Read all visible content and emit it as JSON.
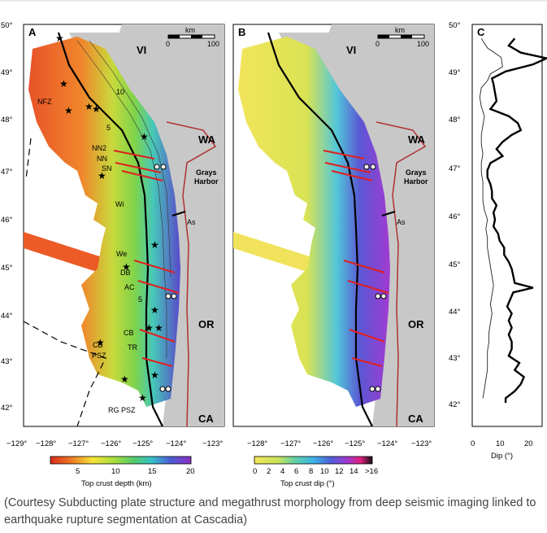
{
  "figure": {
    "top_rule": true,
    "panels": {
      "a": {
        "letter": "A",
        "regions": {
          "vi": "VI",
          "wa": "WA",
          "or": "OR",
          "ca": "CA"
        },
        "scale_bar": {
          "unit": "km",
          "left": "0",
          "right": "100"
        },
        "contour_labels": [
          "10",
          "5",
          "5"
        ],
        "sites": {
          "nfz": "NFZ",
          "nn2": "NN2",
          "nn": "NN",
          "sn": "SN",
          "wi": "Wi",
          "as": "As",
          "we": "We",
          "db": "DB",
          "ac": "AC",
          "cb1": "CB",
          "tr": "TR",
          "cbpsz_1": "CB",
          "cbpsz_2": "PSZ",
          "rgpsz": "RG PSZ"
        },
        "grays_harbor": {
          "line1": "Grays",
          "line2": "Harbor"
        },
        "lat_ticks": [
          "50°",
          "49°",
          "48°",
          "47°",
          "46°",
          "45°",
          "44°",
          "43°",
          "42°"
        ],
        "lon_ticks": [
          "−129°",
          "−128°",
          "−127°",
          "−126°",
          "−125°",
          "−124°",
          "−123°"
        ],
        "colorbar": {
          "ticks": [
            "5",
            "10",
            "15",
            "20"
          ],
          "label": "Top crust depth (km)"
        }
      },
      "b": {
        "letter": "B",
        "regions": {
          "vi": "VI",
          "wa": "WA",
          "or": "OR",
          "ca": "CA"
        },
        "scale_bar": {
          "unit": "km",
          "left": "0",
          "right": "100"
        },
        "sites": {
          "as": "As"
        },
        "grays_harbor": {
          "line1": "Grays",
          "line2": "Harbor"
        },
        "lon_ticks": [
          "−128°",
          "−127°",
          "−126°",
          "−125°",
          "−124°",
          "−123°"
        ],
        "colorbar": {
          "ticks": [
            "0",
            "2",
            "4",
            "6",
            "8",
            "10",
            "12",
            "14",
            ">16"
          ],
          "label": "Top crust dip (°)"
        }
      },
      "c": {
        "letter": "C",
        "lat_ticks": [
          "50°",
          "49°",
          "48°",
          "47°",
          "46°",
          "45°",
          "44°",
          "43°",
          "42°"
        ],
        "x_ticks": [
          "0",
          "10",
          "20"
        ],
        "xlabel": "Dip (°)",
        "x_range": [
          0,
          23
        ],
        "lat_range": [
          41.5,
          50.05
        ],
        "thick_profile": [
          [
            49.75,
            14
          ],
          [
            49.6,
            12
          ],
          [
            49.45,
            16
          ],
          [
            49.33,
            24.5
          ],
          [
            49.2,
            20
          ],
          [
            49.05,
            11
          ],
          [
            48.9,
            6.5
          ],
          [
            48.78,
            7
          ],
          [
            48.6,
            7.5
          ],
          [
            48.42,
            8
          ],
          [
            48.25,
            6
          ],
          [
            48.1,
            12
          ],
          [
            47.95,
            15
          ],
          [
            47.8,
            16
          ],
          [
            47.7,
            13
          ],
          [
            47.55,
            10
          ],
          [
            47.4,
            8
          ],
          [
            47.25,
            10
          ],
          [
            47.1,
            6
          ],
          [
            46.95,
            5
          ],
          [
            46.8,
            5
          ],
          [
            46.65,
            6
          ],
          [
            46.5,
            6.5
          ],
          [
            46.35,
            6.5
          ],
          [
            46.2,
            8
          ],
          [
            46.05,
            7
          ],
          [
            45.9,
            7.5
          ],
          [
            45.75,
            7
          ],
          [
            45.6,
            8.5
          ],
          [
            45.45,
            9
          ],
          [
            45.3,
            10.5
          ],
          [
            45.15,
            10.5
          ],
          [
            45.0,
            12
          ],
          [
            44.85,
            13
          ],
          [
            44.7,
            13.5
          ],
          [
            44.55,
            14
          ],
          [
            44.45,
            20
          ],
          [
            44.35,
            13.5
          ],
          [
            44.2,
            12.5
          ],
          [
            44.05,
            11.5
          ],
          [
            43.9,
            13
          ],
          [
            43.75,
            12
          ],
          [
            43.6,
            13
          ],
          [
            43.45,
            12
          ],
          [
            43.3,
            13
          ],
          [
            43.15,
            13
          ],
          [
            43.0,
            12
          ],
          [
            42.85,
            15.5
          ],
          [
            42.7,
            14
          ],
          [
            42.55,
            17
          ],
          [
            42.4,
            16
          ],
          [
            42.25,
            14
          ],
          [
            42.1,
            11
          ],
          [
            42.0,
            11
          ]
        ],
        "thin_profile": [
          [
            49.75,
            3
          ],
          [
            49.55,
            5
          ],
          [
            49.35,
            9.5
          ],
          [
            49.15,
            10
          ],
          [
            49.0,
            6
          ],
          [
            48.85,
            5
          ],
          [
            48.7,
            3
          ],
          [
            48.5,
            2.5
          ],
          [
            48.3,
            3
          ],
          [
            48.1,
            4
          ],
          [
            47.9,
            3.5
          ],
          [
            47.7,
            3
          ],
          [
            47.5,
            3
          ],
          [
            47.3,
            3.5
          ],
          [
            47.1,
            3
          ],
          [
            46.9,
            3
          ],
          [
            46.7,
            3.5
          ],
          [
            46.5,
            3.5
          ],
          [
            46.3,
            3.5
          ],
          [
            46.1,
            4
          ],
          [
            45.9,
            5
          ],
          [
            45.7,
            4.5
          ],
          [
            45.5,
            5
          ],
          [
            45.3,
            5
          ],
          [
            45.1,
            5.5
          ],
          [
            44.9,
            6
          ],
          [
            44.7,
            6.5
          ],
          [
            44.5,
            7
          ],
          [
            44.3,
            6.5
          ],
          [
            44.1,
            6
          ],
          [
            43.9,
            6.5
          ],
          [
            43.7,
            6
          ],
          [
            43.5,
            5.5
          ],
          [
            43.3,
            5.5
          ],
          [
            43.1,
            5
          ],
          [
            42.9,
            5
          ],
          [
            42.7,
            5
          ],
          [
            42.5,
            4.5
          ],
          [
            42.3,
            4
          ],
          [
            42.1,
            3.5
          ]
        ]
      }
    }
  },
  "caption": "(Courtesy Subducting plate structure and megathrust morphology from deep seismic imaging linked to earthquake rupture segmentation at Cascadia)"
}
